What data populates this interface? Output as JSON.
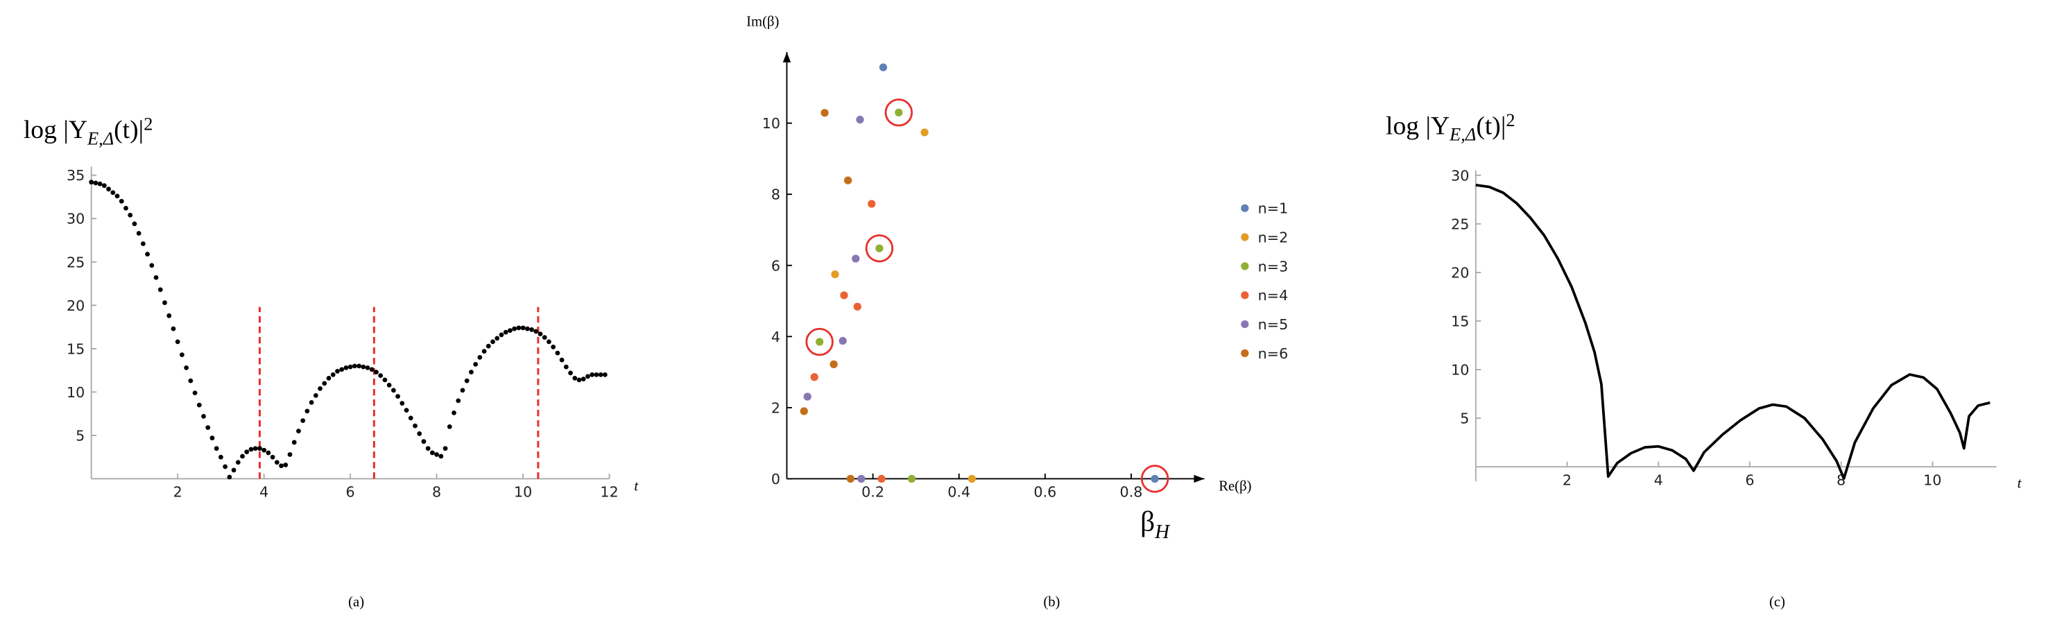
{
  "chart_data": [
    {
      "type": "scatter",
      "caption": "(a)",
      "y_label": {
        "base": "log |Y",
        "sub": "E,Δ",
        "tail": "(t)|",
        "sup": "2"
      },
      "x_label": "t",
      "color": "#000000",
      "x": [
        0,
        0.1,
        0.2,
        0.3,
        0.4,
        0.5,
        0.6,
        0.7,
        0.8,
        0.9,
        1.0,
        1.1,
        1.2,
        1.3,
        1.4,
        1.5,
        1.6,
        1.7,
        1.8,
        1.9,
        2.0,
        2.1,
        2.2,
        2.3,
        2.4,
        2.5,
        2.6,
        2.7,
        2.8,
        2.9,
        3.0,
        3.1,
        3.2,
        3.3,
        3.4,
        3.5,
        3.6,
        3.7,
        3.8,
        3.9,
        4.0,
        4.1,
        4.2,
        4.3,
        4.4,
        4.5,
        4.6,
        4.7,
        4.8,
        4.9,
        5.0,
        5.1,
        5.2,
        5.3,
        5.4,
        5.5,
        5.6,
        5.7,
        5.8,
        5.9,
        6.0,
        6.1,
        6.2,
        6.3,
        6.4,
        6.5,
        6.6,
        6.7,
        6.8,
        6.9,
        7.0,
        7.1,
        7.2,
        7.3,
        7.4,
        7.5,
        7.6,
        7.7,
        7.8,
        7.9,
        8.0,
        8.1,
        8.2,
        8.3,
        8.4,
        8.5,
        8.6,
        8.7,
        8.8,
        8.9,
        9.0,
        9.1,
        9.2,
        9.3,
        9.4,
        9.5,
        9.6,
        9.7,
        9.8,
        9.9,
        10.0,
        10.1,
        10.2,
        10.3,
        10.4,
        10.5,
        10.6,
        10.7,
        10.8,
        10.9,
        11.0,
        11.1,
        11.2,
        11.3,
        11.4,
        11.5,
        11.6,
        11.7,
        11.8,
        11.9
      ],
      "values": [
        34.2,
        34.1,
        34.0,
        33.8,
        33.4,
        33.0,
        32.6,
        32.0,
        31.2,
        30.4,
        29.4,
        28.3,
        27.1,
        25.9,
        24.6,
        23.2,
        21.8,
        20.3,
        18.8,
        17.3,
        15.8,
        14.3,
        12.8,
        11.3,
        9.9,
        8.5,
        7.2,
        5.9,
        4.7,
        3.5,
        2.5,
        1.4,
        0.2,
        1.0,
        1.9,
        2.6,
        3.1,
        3.4,
        3.5,
        3.5,
        3.3,
        3.0,
        2.5,
        1.9,
        1.5,
        1.6,
        2.8,
        4.2,
        5.5,
        6.7,
        7.8,
        8.8,
        9.6,
        10.4,
        11.0,
        11.6,
        12.0,
        12.4,
        12.6,
        12.8,
        12.9,
        13.0,
        13.0,
        12.9,
        12.8,
        12.6,
        12.3,
        11.9,
        11.4,
        10.8,
        10.2,
        9.5,
        8.7,
        7.9,
        7.0,
        6.1,
        5.2,
        4.3,
        3.5,
        3.0,
        2.8,
        2.6,
        3.5,
        6.0,
        7.6,
        9.0,
        10.2,
        11.3,
        12.3,
        13.2,
        14.0,
        14.7,
        15.3,
        15.8,
        16.2,
        16.6,
        16.9,
        17.1,
        17.3,
        17.4,
        17.4,
        17.3,
        17.2,
        17.0,
        16.7,
        16.3,
        15.8,
        15.2,
        14.5,
        13.7,
        12.9,
        12.2,
        11.6,
        11.4,
        11.5,
        11.8,
        12.0,
        12.0,
        12.0,
        12.0
      ],
      "vlines": {
        "x": [
          3.9,
          6.55,
          10.35
        ],
        "color": "#e8302b"
      },
      "xlim": [
        0,
        12
      ],
      "ylim": [
        0,
        36
      ],
      "xticks": [
        2,
        4,
        6,
        8,
        10,
        12
      ],
      "yticks": [
        5,
        10,
        15,
        20,
        25,
        30,
        35
      ]
    },
    {
      "type": "scatter",
      "caption": "(b)",
      "y_label": "Im(β)",
      "x_label": "Re(β)",
      "annotation": {
        "base": "β",
        "sub": "H"
      },
      "series": [
        {
          "name": "n=1",
          "color": "#5e81b5",
          "x": [
            0.224,
            0.855
          ],
          "values": [
            11.57,
            0
          ],
          "circled": [
            false,
            true
          ]
        },
        {
          "name": "n=2",
          "color": "#e19c24",
          "x": [
            0.32,
            0.112,
            0.43
          ],
          "values": [
            9.74,
            5.75,
            0
          ],
          "circled": [
            false,
            false,
            false
          ]
        },
        {
          "name": "n=3",
          "color": "#8fb032",
          "x": [
            0.26,
            0.215,
            0.076,
            0.29
          ],
          "values": [
            10.3,
            6.48,
            3.85,
            0
          ],
          "circled": [
            true,
            true,
            true,
            false
          ]
        },
        {
          "name": "n=4",
          "color": "#eb6235",
          "x": [
            0.197,
            0.164,
            0.133,
            0.064,
            0.22
          ],
          "values": [
            7.73,
            4.84,
            5.16,
            2.86,
            0
          ],
          "circled": [
            false,
            false,
            false,
            false,
            false
          ]
        },
        {
          "name": "n=5",
          "color": "#8778b3",
          "x": [
            0.17,
            0.16,
            0.13,
            0.048,
            0.173
          ],
          "values": [
            10.1,
            6.19,
            3.88,
            2.31,
            0
          ],
          "circled": [
            false,
            false,
            false,
            false,
            false
          ]
        },
        {
          "name": "n=6",
          "color": "#c56e1a",
          "x": [
            0.088,
            0.142,
            0.109,
            0.04,
            0.148
          ],
          "values": [
            10.29,
            8.39,
            3.22,
            1.9,
            0
          ],
          "circled": [
            false,
            false,
            false,
            false,
            false
          ]
        }
      ],
      "circle_color": "#e8302b",
      "xlim": [
        0,
        0.97
      ],
      "ylim": [
        0,
        12
      ],
      "xticks": [
        0.2,
        0.4,
        0.6,
        0.8
      ],
      "yticks": [
        0,
        2,
        4,
        6,
        8,
        10
      ]
    },
    {
      "type": "line",
      "caption": "(c)",
      "y_label": {
        "base": "log |Y",
        "sub": "E,Δ",
        "tail": "(t)|",
        "sup": "2"
      },
      "x_label": "t",
      "color": "#000000",
      "x": [
        0,
        0.3,
        0.6,
        0.9,
        1.2,
        1.5,
        1.8,
        2.1,
        2.4,
        2.6,
        2.75,
        2.9,
        3.1,
        3.4,
        3.7,
        4.0,
        4.3,
        4.6,
        4.77,
        5.0,
        5.4,
        5.8,
        6.2,
        6.5,
        6.8,
        7.2,
        7.6,
        7.9,
        8.06,
        8.3,
        8.7,
        9.1,
        9.5,
        9.8,
        10.1,
        10.4,
        10.6,
        10.69,
        10.8,
        11.0,
        11.26
      ],
      "values": [
        29,
        28.8,
        28.2,
        27.1,
        25.6,
        23.8,
        21.4,
        18.5,
        14.8,
        11.8,
        8.5,
        -1,
        0.4,
        1.4,
        2.0,
        2.1,
        1.7,
        0.8,
        -0.4,
        1.5,
        3.3,
        4.8,
        6.0,
        6.4,
        6.2,
        5.0,
        2.8,
        0.6,
        -1.2,
        2.5,
        6.0,
        8.4,
        9.5,
        9.2,
        8.0,
        5.5,
        3.5,
        1.9,
        5.2,
        6.3,
        6.6
      ],
      "xlim": [
        0,
        11.4
      ],
      "ylim": [
        -1.5,
        30.5
      ],
      "xticks": [
        2,
        4,
        6,
        8,
        10
      ],
      "yticks": [
        5,
        10,
        15,
        20,
        25,
        30
      ]
    }
  ]
}
